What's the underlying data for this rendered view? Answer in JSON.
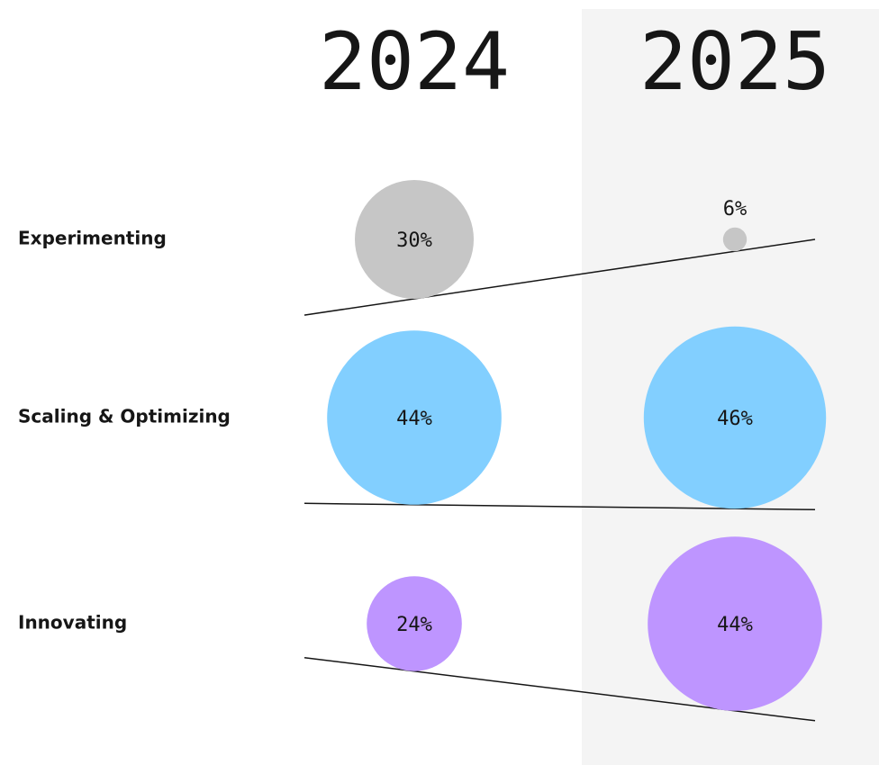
{
  "chart_data": {
    "type": "bubble",
    "categories": [
      "Experimenting",
      "Scaling & Optimizing",
      "Innovating"
    ],
    "colors": [
      "#c6c6c6",
      "#82cfff",
      "#be95ff"
    ],
    "series": [
      {
        "name": "2024",
        "values": [
          30,
          44,
          24
        ],
        "value_labels": [
          "30%",
          "44%",
          "24%"
        ]
      },
      {
        "name": "2025",
        "values": [
          6,
          46,
          44
        ],
        "value_labels": [
          "6%",
          "46%",
          "44%"
        ]
      }
    ]
  }
}
